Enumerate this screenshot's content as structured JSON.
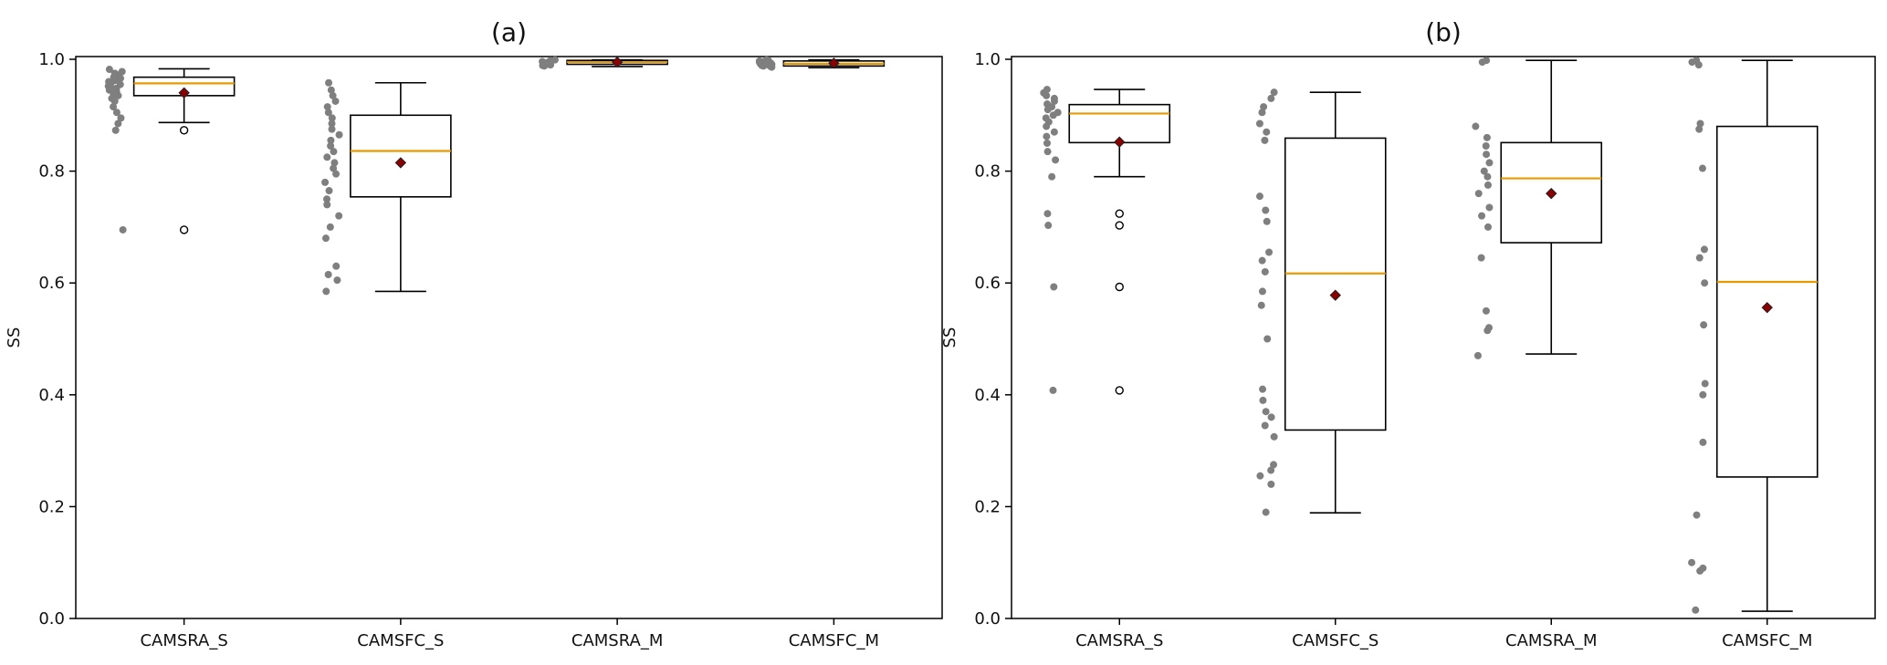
{
  "chart_data": [
    {
      "type": "box",
      "title": "(a)",
      "xlabel": "",
      "ylabel": "SS",
      "ylim": [
        0,
        1.0
      ],
      "yticks": [
        "0.0",
        "0.2",
        "0.4",
        "0.6",
        "0.8",
        "1.0"
      ],
      "categories": [
        "CAMSRA_S",
        "CAMSFC_S",
        "CAMSRA_M",
        "CAMSFC_M"
      ],
      "boxes": [
        {
          "category": "CAMSRA_S",
          "whisker_low": 0.887,
          "q1": 0.935,
          "median": 0.957,
          "q3": 0.968,
          "whisker_high": 0.983,
          "mean": 0.94,
          "outliers": [
            0.873,
            0.695
          ],
          "points": [
            0.982,
            0.978,
            0.975,
            0.972,
            0.97,
            0.968,
            0.966,
            0.964,
            0.962,
            0.96,
            0.958,
            0.955,
            0.952,
            0.95,
            0.948,
            0.945,
            0.942,
            0.938,
            0.935,
            0.93,
            0.925,
            0.915,
            0.905,
            0.895,
            0.885,
            0.873,
            0.695
          ]
        },
        {
          "category": "CAMSFC_S",
          "whisker_low": 0.585,
          "q1": 0.754,
          "median": 0.836,
          "q3": 0.9,
          "whisker_high": 0.958,
          "mean": 0.815,
          "outliers": [],
          "points": [
            0.958,
            0.945,
            0.935,
            0.925,
            0.915,
            0.905,
            0.895,
            0.885,
            0.875,
            0.865,
            0.855,
            0.845,
            0.835,
            0.825,
            0.815,
            0.805,
            0.795,
            0.78,
            0.765,
            0.75,
            0.74,
            0.72,
            0.7,
            0.68,
            0.63,
            0.615,
            0.605,
            0.585
          ]
        },
        {
          "category": "CAMSRA_M",
          "whisker_low": 0.987,
          "q1": 0.991,
          "median": 0.995,
          "q3": 0.998,
          "whisker_high": 0.999,
          "mean": 0.995,
          "outliers": [],
          "points": [
            0.999,
            0.998,
            0.997,
            0.996,
            0.995,
            0.994,
            0.993,
            0.992,
            0.991,
            0.99,
            0.989,
            0.988
          ]
        },
        {
          "category": "CAMSFC_M",
          "whisker_low": 0.985,
          "q1": 0.988,
          "median": 0.992,
          "q3": 0.997,
          "whisker_high": 0.999,
          "mean": 0.993,
          "outliers": [],
          "points": [
            0.999,
            0.998,
            0.997,
            0.996,
            0.995,
            0.994,
            0.993,
            0.992,
            0.991,
            0.99,
            0.989,
            0.988,
            0.987,
            0.986
          ]
        }
      ]
    },
    {
      "type": "box",
      "title": "(b)",
      "xlabel": "",
      "ylabel": "SS",
      "ylim": [
        0,
        1.0
      ],
      "yticks": [
        "0.0",
        "0.2",
        "0.4",
        "0.6",
        "0.8",
        "1.0"
      ],
      "categories": [
        "CAMSRA_S",
        "CAMSFC_S",
        "CAMSRA_M",
        "CAMSFC_M"
      ],
      "boxes": [
        {
          "category": "CAMSRA_S",
          "whisker_low": 0.79,
          "q1": 0.851,
          "median": 0.903,
          "q3": 0.919,
          "whisker_high": 0.946,
          "mean": 0.852,
          "outliers": [
            0.724,
            0.703,
            0.593,
            0.408
          ],
          "points": [
            0.946,
            0.94,
            0.935,
            0.93,
            0.925,
            0.92,
            0.915,
            0.91,
            0.905,
            0.9,
            0.895,
            0.888,
            0.88,
            0.87,
            0.862,
            0.85,
            0.835,
            0.82,
            0.79,
            0.724,
            0.703,
            0.593,
            0.408
          ]
        },
        {
          "category": "CAMSFC_S",
          "whisker_low": 0.189,
          "q1": 0.337,
          "median": 0.617,
          "q3": 0.859,
          "whisker_high": 0.941,
          "mean": 0.578,
          "outliers": [],
          "points": [
            0.941,
            0.93,
            0.915,
            0.905,
            0.885,
            0.87,
            0.855,
            0.755,
            0.73,
            0.71,
            0.655,
            0.64,
            0.62,
            0.585,
            0.56,
            0.5,
            0.41,
            0.39,
            0.37,
            0.36,
            0.345,
            0.325,
            0.275,
            0.265,
            0.255,
            0.24,
            0.19
          ]
        },
        {
          "category": "CAMSRA_M",
          "whisker_low": 0.473,
          "q1": 0.672,
          "median": 0.787,
          "q3": 0.851,
          "whisker_high": 0.998,
          "mean": 0.76,
          "outliers": [],
          "points": [
            0.998,
            0.995,
            0.88,
            0.86,
            0.845,
            0.83,
            0.815,
            0.8,
            0.79,
            0.775,
            0.76,
            0.735,
            0.72,
            0.7,
            0.645,
            0.55,
            0.52,
            0.515,
            0.47
          ]
        },
        {
          "category": "CAMSFC_M",
          "whisker_low": 0.013,
          "q1": 0.253,
          "median": 0.602,
          "q3": 0.88,
          "whisker_high": 0.998,
          "mean": 0.556,
          "outliers": [],
          "points": [
            0.998,
            0.995,
            0.99,
            0.885,
            0.875,
            0.805,
            0.66,
            0.645,
            0.6,
            0.525,
            0.42,
            0.4,
            0.315,
            0.185,
            0.1,
            0.09,
            0.085,
            0.015
          ]
        }
      ]
    }
  ]
}
